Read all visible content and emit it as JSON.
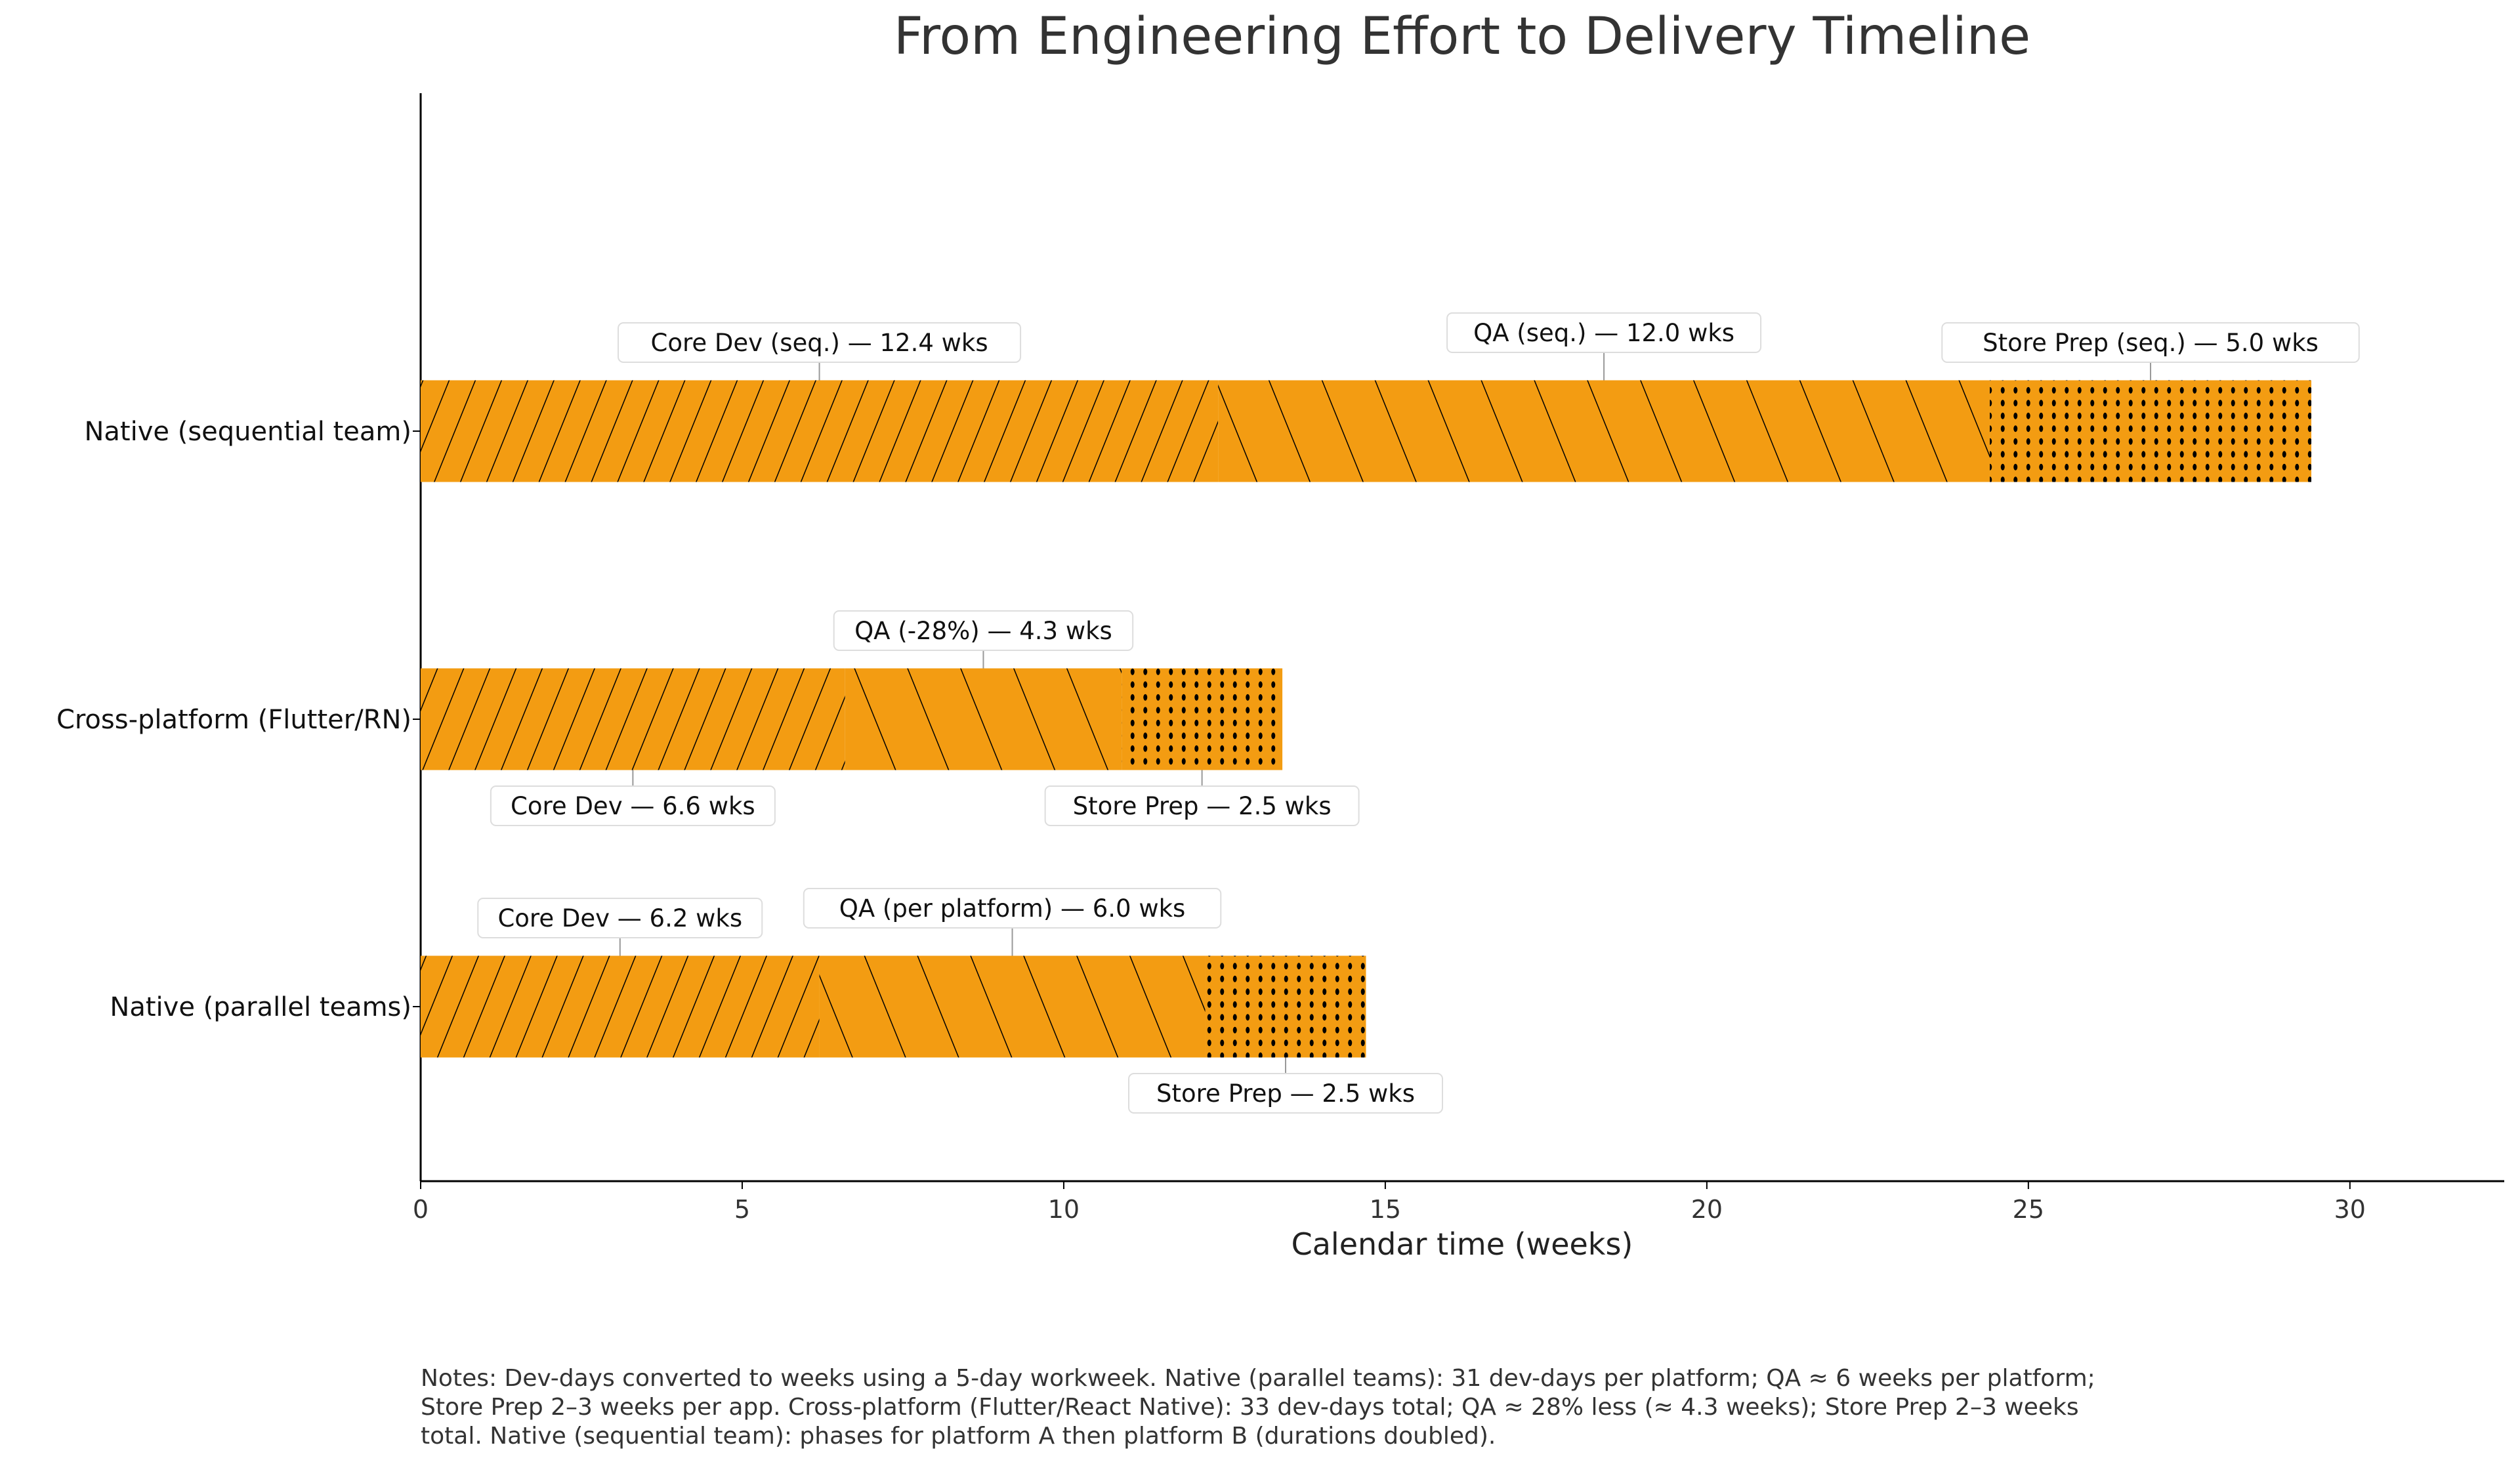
{
  "chart_data": {
    "type": "bar",
    "orientation": "horizontal-stacked",
    "title": "From Engineering Effort to Delivery Timeline",
    "xlabel": "Calendar time (weeks)",
    "ylabel": "",
    "xlim": [
      0,
      32.4
    ],
    "xticks": [
      0,
      5,
      10,
      15,
      20,
      25,
      30
    ],
    "grid": false,
    "bar_color": "#f39c12",
    "patterns": {
      "core": "diagonal-forward-hatch",
      "qa": "diagonal-back-hatch",
      "store": "dots"
    },
    "categories": [
      "Native (sequential team)",
      "Cross-platform (Flutter/RN)",
      "Native (parallel teams)"
    ],
    "series": [
      {
        "phase": "core",
        "values": [
          12.4,
          6.6,
          6.2
        ]
      },
      {
        "phase": "qa",
        "values": [
          12.0,
          4.3,
          6.0
        ]
      },
      {
        "phase": "store",
        "values": [
          5.0,
          2.5,
          2.5
        ]
      }
    ],
    "annotations": [
      {
        "category": 0,
        "phase": "core",
        "text": "Core Dev (seq.) — 12.4 wks",
        "side": "above"
      },
      {
        "category": 0,
        "phase": "qa",
        "text": "QA (seq.) — 12.0 wks",
        "side": "above-high"
      },
      {
        "category": 0,
        "phase": "store",
        "text": "Store Prep (seq.) — 5.0 wks",
        "side": "above"
      },
      {
        "category": 1,
        "phase": "core",
        "text": "Core Dev — 6.6 wks",
        "side": "below"
      },
      {
        "category": 1,
        "phase": "qa",
        "text": "QA (-28%) — 4.3 wks",
        "side": "above"
      },
      {
        "category": 1,
        "phase": "store",
        "text": "Store Prep — 2.5 wks",
        "side": "below"
      },
      {
        "category": 2,
        "phase": "core",
        "text": "Core Dev — 6.2 wks",
        "side": "above"
      },
      {
        "category": 2,
        "phase": "qa",
        "text": "QA (per platform) — 6.0 wks",
        "side": "above-high"
      },
      {
        "category": 2,
        "phase": "store",
        "text": "Store Prep — 2.5 wks",
        "side": "below"
      }
    ]
  },
  "notes": [
    "Notes: Dev-days converted to weeks using a 5-day workweek. Native (parallel teams): 31 dev-days per platform; QA ≈ 6 weeks per platform;",
    "Store Prep 2–3 weeks per app. Cross-platform (Flutter/React Native): 33 dev-days total; QA ≈ 28% less (≈ 4.3 weeks); Store Prep 2–3 weeks",
    "total. Native (sequential team): phases for platform A then platform B (durations doubled)."
  ]
}
